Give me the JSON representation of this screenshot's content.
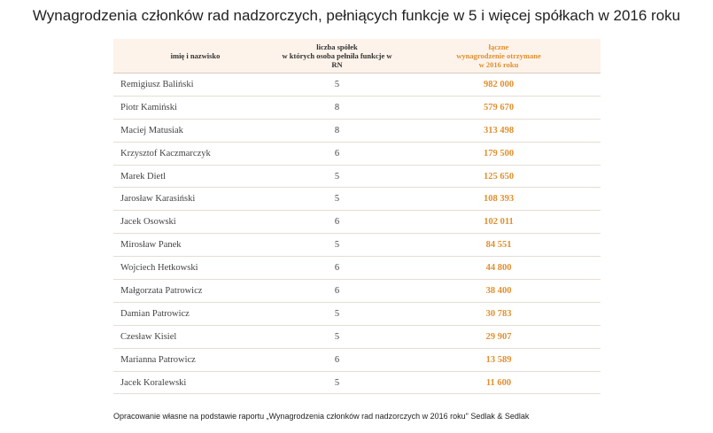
{
  "title": "Wynagrodzenia członków rad nadzorczych, pełniących funkcje w 5 i więcej spółkach w 2016 roku",
  "table": {
    "headers": {
      "name": [
        "imię i nazwisko"
      ],
      "count": [
        "liczba spółek",
        "w których osoba pełniła funkcje w",
        "RN"
      ],
      "value": [
        "łączne",
        "wynagrodzenie otrzymane",
        "w 2016 roku"
      ]
    },
    "rows": [
      {
        "name": "Remigiusz Baliński",
        "count": "5",
        "value": "982 000"
      },
      {
        "name": "Piotr Kamiński",
        "count": "8",
        "value": "579 670"
      },
      {
        "name": "Maciej Matusiak",
        "count": "8",
        "value": "313 498"
      },
      {
        "name": "Krzysztof Kaczmarczyk",
        "count": "6",
        "value": "179 500"
      },
      {
        "name": "Marek Dietl",
        "count": "5",
        "value": "125 650"
      },
      {
        "name": "Jarosław Karasiński",
        "count": "5",
        "value": "108 393"
      },
      {
        "name": "Jacek Osowski",
        "count": "6",
        "value": "102 011"
      },
      {
        "name": "Mirosław Panek",
        "count": "5",
        "value": "84 551"
      },
      {
        "name": "Wojciech Hetkowski",
        "count": "6",
        "value": "44 800"
      },
      {
        "name": "Małgorzata Patrowicz",
        "count": "6",
        "value": "38 400"
      },
      {
        "name": "Damian Patrowicz",
        "count": "5",
        "value": "30 783"
      },
      {
        "name": "Czesław Kisiel",
        "count": "5",
        "value": "29 907"
      },
      {
        "name": "Marianna Patrowicz",
        "count": "6",
        "value": "13 589"
      },
      {
        "name": "Jacek Koralewski",
        "count": "5",
        "value": "11 600"
      }
    ]
  },
  "source": "Opracowanie własne na podstawie raportu „Wynagrodzenia członków rad nadzorczych w 2016 roku\" Sedlak & Sedlak",
  "colors": {
    "accent": "#e0902f",
    "header_bg": "#fdf3ea"
  }
}
